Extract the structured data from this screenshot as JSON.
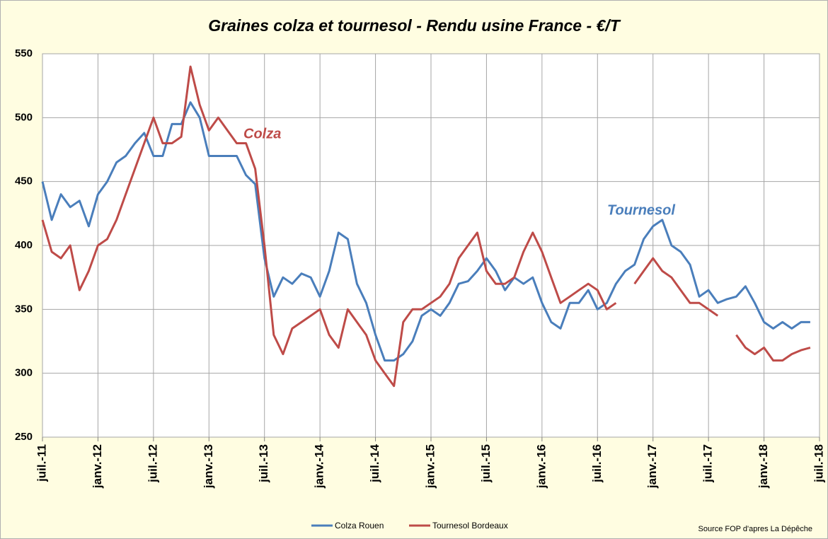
{
  "chart_data": {
    "type": "line",
    "title": "Graines colza et tournesol - Rendu usine France - €/T",
    "x": [
      "2011-07",
      "2011-08",
      "2011-09",
      "2011-10",
      "2011-11",
      "2011-12",
      "2012-01",
      "2012-02",
      "2012-03",
      "2012-04",
      "2012-05",
      "2012-06",
      "2012-07",
      "2012-08",
      "2012-09",
      "2012-10",
      "2012-11",
      "2012-12",
      "2013-01",
      "2013-02",
      "2013-03",
      "2013-04",
      "2013-05",
      "2013-06",
      "2013-07",
      "2013-08",
      "2013-09",
      "2013-10",
      "2013-11",
      "2013-12",
      "2014-01",
      "2014-02",
      "2014-03",
      "2014-04",
      "2014-05",
      "2014-06",
      "2014-07",
      "2014-08",
      "2014-09",
      "2014-10",
      "2014-11",
      "2014-12",
      "2015-01",
      "2015-02",
      "2015-03",
      "2015-04",
      "2015-05",
      "2015-06",
      "2015-07",
      "2015-08",
      "2015-09",
      "2015-10",
      "2015-11",
      "2015-12",
      "2016-01",
      "2016-02",
      "2016-03",
      "2016-04",
      "2016-05",
      "2016-06",
      "2016-07",
      "2016-08",
      "2016-09",
      "2016-10",
      "2016-11",
      "2016-12",
      "2017-01",
      "2017-02",
      "2017-03",
      "2017-04",
      "2017-05",
      "2017-06",
      "2017-07",
      "2017-08",
      "2017-09",
      "2017-10",
      "2017-11",
      "2017-12",
      "2018-01",
      "2018-02",
      "2018-03",
      "2018-04",
      "2018-05",
      "2018-06"
    ],
    "series": [
      {
        "name": "Colza Rouen",
        "color": "#4a7ebb",
        "values": [
          450,
          420,
          440,
          430,
          435,
          415,
          440,
          450,
          465,
          470,
          480,
          488,
          470,
          470,
          495,
          495,
          512,
          500,
          470,
          470,
          470,
          470,
          455,
          448,
          390,
          360,
          375,
          370,
          378,
          375,
          360,
          380,
          410,
          405,
          370,
          355,
          330,
          310,
          310,
          315,
          325,
          345,
          350,
          345,
          355,
          370,
          372,
          380,
          390,
          380,
          365,
          375,
          370,
          375,
          355,
          340,
          335,
          355,
          355,
          365,
          350,
          355,
          370,
          380,
          385,
          405,
          415,
          420,
          400,
          395,
          385,
          360,
          365,
          355,
          358,
          360,
          368,
          355,
          340,
          335,
          340,
          335,
          340,
          340
        ]
      },
      {
        "name": "Tournesol Bordeaux",
        "color": "#be4b48",
        "values": [
          420,
          395,
          390,
          400,
          365,
          380,
          400,
          405,
          420,
          440,
          460,
          480,
          500,
          480,
          480,
          485,
          540,
          510,
          490,
          500,
          490,
          480,
          480,
          460,
          400,
          330,
          315,
          335,
          340,
          345,
          350,
          330,
          320,
          350,
          340,
          330,
          310,
          300,
          290,
          340,
          350,
          350,
          355,
          360,
          370,
          390,
          400,
          410,
          380,
          370,
          370,
          375,
          395,
          410,
          395,
          375,
          355,
          360,
          365,
          370,
          365,
          350,
          355,
          null,
          370,
          380,
          390,
          380,
          375,
          365,
          355,
          355,
          350,
          345,
          null,
          330,
          320,
          315,
          320,
          310,
          310,
          315,
          318,
          320
        ]
      }
    ],
    "xlim": [
      "2011-07",
      "2018-07"
    ],
    "xticks": [
      {
        "value": "2011-07",
        "label": "juil.-11"
      },
      {
        "value": "2012-01",
        "label": "janv.-12"
      },
      {
        "value": "2012-07",
        "label": "juil.-12"
      },
      {
        "value": "2013-01",
        "label": "janv.-13"
      },
      {
        "value": "2013-07",
        "label": "juil.-13"
      },
      {
        "value": "2014-01",
        "label": "janv.-14"
      },
      {
        "value": "2014-07",
        "label": "juil.-14"
      },
      {
        "value": "2015-01",
        "label": "janv.-15"
      },
      {
        "value": "2015-07",
        "label": "juil.-15"
      },
      {
        "value": "2016-01",
        "label": "janv.-16"
      },
      {
        "value": "2016-07",
        "label": "juil.-16"
      },
      {
        "value": "2017-01",
        "label": "janv.-17"
      },
      {
        "value": "2017-07",
        "label": "juil.-17"
      },
      {
        "value": "2018-01",
        "label": "janv.-18"
      },
      {
        "value": "2018-07",
        "label": "juil.-18"
      }
    ],
    "ylim": [
      250,
      550
    ],
    "yticks": [
      250,
      300,
      350,
      400,
      450,
      500,
      550
    ],
    "grid": true,
    "legend": "bottom",
    "annotations": [
      {
        "text": "Colza",
        "color": "#be4b48"
      },
      {
        "text": "Tournesol",
        "color": "#4a7ebb"
      }
    ],
    "source": "Source FOP d'apres La Dépêche"
  }
}
